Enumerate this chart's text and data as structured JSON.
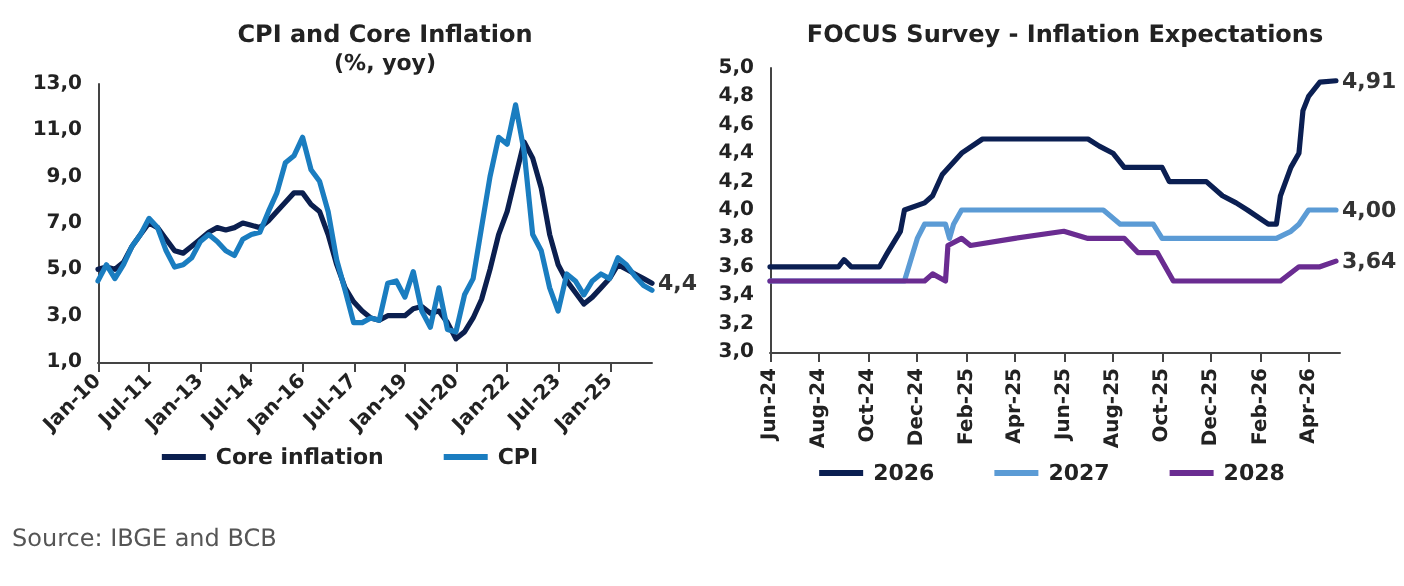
{
  "chart_data": [
    {
      "type": "line",
      "title": "CPI and Core Inflation",
      "subtitle": "(%, yoy)",
      "legend": "bottom",
      "grid": false,
      "marker": "none",
      "xlim": [
        "2010-01",
        "2026-04"
      ],
      "xticks": [
        {
          "value": "2010-01",
          "label": "Jan-10"
        },
        {
          "value": "2011-07",
          "label": "Jul-11"
        },
        {
          "value": "2013-01",
          "label": "Jan-13"
        },
        {
          "value": "2014-07",
          "label": "Jul-14"
        },
        {
          "value": "2016-01",
          "label": "Jan-16"
        },
        {
          "value": "2017-07",
          "label": "Jul-17"
        },
        {
          "value": "2019-01",
          "label": "Jan-19"
        },
        {
          "value": "2020-07",
          "label": "Jul-20"
        },
        {
          "value": "2022-01",
          "label": "Jan-22"
        },
        {
          "value": "2023-07",
          "label": "Jul-23"
        },
        {
          "value": "2025-01",
          "label": "Jan-25"
        }
      ],
      "ylim": [
        1,
        13
      ],
      "yticks": [
        {
          "value": 1,
          "label": "1,0"
        },
        {
          "value": 3,
          "label": "3,0"
        },
        {
          "value": 5,
          "label": "5,0"
        },
        {
          "value": 7,
          "label": "7,0"
        },
        {
          "value": 9,
          "label": "9,0"
        },
        {
          "value": 11,
          "label": "11,0"
        },
        {
          "value": 13,
          "label": "13,0"
        }
      ],
      "x": [
        "2010-01",
        "2010-04",
        "2010-07",
        "2010-10",
        "2011-01",
        "2011-04",
        "2011-07",
        "2011-10",
        "2012-01",
        "2012-04",
        "2012-07",
        "2012-10",
        "2013-01",
        "2013-04",
        "2013-07",
        "2013-10",
        "2014-01",
        "2014-04",
        "2014-07",
        "2014-10",
        "2015-01",
        "2015-04",
        "2015-07",
        "2015-10",
        "2016-01",
        "2016-04",
        "2016-07",
        "2016-10",
        "2017-01",
        "2017-04",
        "2017-07",
        "2017-10",
        "2018-01",
        "2018-04",
        "2018-07",
        "2018-10",
        "2019-01",
        "2019-04",
        "2019-07",
        "2019-10",
        "2020-01",
        "2020-04",
        "2020-07",
        "2020-10",
        "2021-01",
        "2021-04",
        "2021-07",
        "2021-10",
        "2022-01",
        "2022-04",
        "2022-07",
        "2022-10",
        "2023-01",
        "2023-04",
        "2023-07",
        "2023-10",
        "2024-01",
        "2024-04",
        "2024-07",
        "2024-10",
        "2025-01",
        "2025-04",
        "2025-07",
        "2025-10",
        "2026-01",
        "2026-04"
      ],
      "series": [
        {
          "name": "Core inflation",
          "color": "#0b1f4f",
          "values": [
            5.0,
            5.1,
            5.0,
            5.3,
            6.0,
            6.5,
            7.0,
            6.8,
            6.3,
            5.8,
            5.7,
            6.0,
            6.3,
            6.6,
            6.8,
            6.7,
            6.8,
            7.0,
            6.9,
            6.8,
            7.1,
            7.5,
            7.9,
            8.3,
            8.3,
            7.8,
            7.5,
            6.5,
            5.2,
            4.2,
            3.6,
            3.2,
            2.9,
            2.8,
            3.0,
            3.0,
            3.0,
            3.3,
            3.4,
            3.1,
            3.2,
            2.7,
            2.0,
            2.3,
            2.9,
            3.7,
            5.0,
            6.5,
            7.5,
            9.0,
            10.5,
            9.8,
            8.5,
            6.5,
            5.2,
            4.5,
            4.0,
            3.5,
            3.8,
            4.2,
            4.6,
            5.2,
            5.0,
            4.8,
            4.6,
            4.4
          ]
        },
        {
          "name": "CPI",
          "color": "#1a7dc0",
          "values": [
            4.5,
            5.2,
            4.6,
            5.2,
            6.0,
            6.5,
            7.2,
            6.8,
            5.8,
            5.1,
            5.2,
            5.5,
            6.2,
            6.5,
            6.2,
            5.8,
            5.6,
            6.3,
            6.5,
            6.6,
            7.5,
            8.3,
            9.6,
            9.9,
            10.7,
            9.3,
            8.8,
            7.5,
            5.4,
            4.1,
            2.7,
            2.7,
            2.9,
            2.8,
            4.4,
            4.5,
            3.8,
            4.9,
            3.2,
            2.5,
            4.2,
            2.4,
            2.3,
            3.9,
            4.6,
            6.8,
            9.0,
            10.7,
            10.4,
            12.1,
            10.1,
            6.5,
            5.8,
            4.2,
            3.2,
            4.8,
            4.5,
            3.9,
            4.5,
            4.8,
            4.6,
            5.5,
            5.2,
            4.7,
            4.3,
            4.1
          ]
        }
      ],
      "annotations": [
        {
          "text": "4,4",
          "x": "2026-04",
          "y": 4.4
        },
        "Source: IBGE and BCB"
      ]
    },
    {
      "type": "line",
      "title": "FOCUS Survey - Inflation Expectations",
      "legend": "bottom",
      "grid": false,
      "marker": "none",
      "xlim": [
        "2024-06-01",
        "2026-05-10"
      ],
      "xticks": [
        {
          "value": "2024-06-01",
          "label": "Jun-24"
        },
        {
          "value": "2024-08-01",
          "label": "Aug-24"
        },
        {
          "value": "2024-10-01",
          "label": "Oct-24"
        },
        {
          "value": "2024-12-01",
          "label": "Dec-24"
        },
        {
          "value": "2025-02-01",
          "label": "Feb-25"
        },
        {
          "value": "2025-04-01",
          "label": "Apr-25"
        },
        {
          "value": "2025-06-01",
          "label": "Jun-25"
        },
        {
          "value": "2025-08-01",
          "label": "Aug-25"
        },
        {
          "value": "2025-10-01",
          "label": "Oct-25"
        },
        {
          "value": "2025-12-01",
          "label": "Dec-25"
        },
        {
          "value": "2026-02-01",
          "label": "Feb-26"
        },
        {
          "value": "2026-04-01",
          "label": "Apr-26"
        }
      ],
      "ylim": [
        3,
        5
      ],
      "yticks": [
        {
          "value": 3,
          "label": "3,0"
        },
        {
          "value": 3.2,
          "label": "3,2"
        },
        {
          "value": 3.4,
          "label": "3,4"
        },
        {
          "value": 3.6,
          "label": "3,6"
        },
        {
          "value": 3.8,
          "label": "3,8"
        },
        {
          "value": 4,
          "label": "4,0"
        },
        {
          "value": 4.2,
          "label": "4,2"
        },
        {
          "value": 4.4,
          "label": "4,4"
        },
        {
          "value": 4.6,
          "label": "4,6"
        },
        {
          "value": 4.8,
          "label": "4,8"
        },
        {
          "value": 5,
          "label": "5,0"
        }
      ],
      "series": [
        {
          "name": "2026",
          "color": "#0b1f52",
          "x": [
            "2024-06-01",
            "2024-08-25",
            "2024-09-01",
            "2024-09-10",
            "2024-10-15",
            "2024-10-25",
            "2024-11-10",
            "2024-11-15",
            "2024-12-10",
            "2024-12-20",
            "2025-01-01",
            "2025-01-25",
            "2025-02-20",
            "2025-07-01",
            "2025-07-15",
            "2025-08-01",
            "2025-08-15",
            "2025-10-01",
            "2025-10-10",
            "2025-11-25",
            "2025-12-15",
            "2026-01-01",
            "2026-01-15",
            "2026-02-10",
            "2026-02-20",
            "2026-02-25",
            "2026-03-10",
            "2026-03-20",
            "2026-03-25",
            "2026-04-01",
            "2026-04-15",
            "2026-05-05"
          ],
          "values": [
            3.6,
            3.6,
            3.65,
            3.6,
            3.6,
            3.7,
            3.85,
            4.0,
            4.05,
            4.1,
            4.25,
            4.4,
            4.5,
            4.5,
            4.45,
            4.4,
            4.3,
            4.3,
            4.2,
            4.2,
            4.1,
            4.05,
            4.0,
            3.9,
            3.9,
            4.1,
            4.3,
            4.4,
            4.7,
            4.8,
            4.9,
            4.91
          ]
        },
        {
          "name": "2027",
          "color": "#5b9bd5",
          "x": [
            "2024-06-01",
            "2024-11-15",
            "2024-12-01",
            "2024-12-10",
            "2025-01-05",
            "2025-01-10",
            "2025-01-15",
            "2025-01-25",
            "2025-07-20",
            "2025-08-10",
            "2025-09-20",
            "2025-10-01",
            "2026-02-10",
            "2026-02-20",
            "2026-03-10",
            "2026-03-20",
            "2026-04-01",
            "2026-05-05"
          ],
          "values": [
            3.5,
            3.5,
            3.8,
            3.9,
            3.9,
            3.8,
            3.9,
            4.0,
            4.0,
            3.9,
            3.9,
            3.8,
            3.8,
            3.8,
            3.85,
            3.9,
            4.0,
            4.0
          ]
        },
        {
          "name": "2028",
          "color": "#6a2c91",
          "x": [
            "2024-06-01",
            "2024-12-10",
            "2024-12-20",
            "2025-01-05",
            "2025-01-08",
            "2025-01-25",
            "2025-02-05",
            "2025-04-01",
            "2025-06-01",
            "2025-07-01",
            "2025-08-15",
            "2025-09-01",
            "2025-09-25",
            "2025-10-15",
            "2026-02-25",
            "2026-03-20",
            "2026-04-15",
            "2026-05-05"
          ],
          "values": [
            3.5,
            3.5,
            3.55,
            3.5,
            3.75,
            3.8,
            3.75,
            3.8,
            3.85,
            3.8,
            3.8,
            3.7,
            3.7,
            3.5,
            3.5,
            3.6,
            3.6,
            3.64
          ]
        }
      ],
      "annotations": [
        {
          "text": "4,91",
          "x": "2026-05-05",
          "y": 4.91
        },
        {
          "text": "4,00",
          "x": "2026-05-05",
          "y": 4.0
        },
        {
          "text": "3,64",
          "x": "2026-05-05",
          "y": 3.64
        }
      ]
    }
  ]
}
